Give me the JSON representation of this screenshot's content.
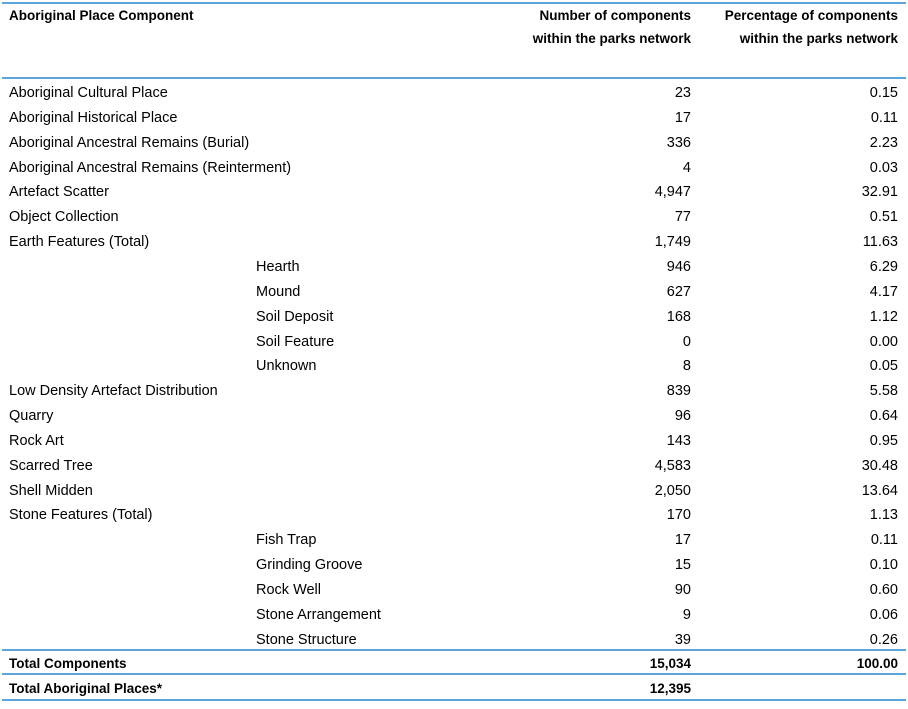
{
  "headers": {
    "component": "Aboriginal Place Component",
    "number_line1": "Number of components",
    "number_line2": "within the parks network",
    "percent_line1": "Percentage of components",
    "percent_line2": "within the parks network"
  },
  "rows": [
    {
      "name": "Aboriginal Cultural Place",
      "sub": "",
      "number": "23",
      "percent": "0.15"
    },
    {
      "name": "Aboriginal Historical Place",
      "sub": "",
      "number": "17",
      "percent": "0.11"
    },
    {
      "name": "Aboriginal Ancestral Remains (Burial)",
      "sub": "",
      "number": "336",
      "percent": "2.23"
    },
    {
      "name": "Aboriginal Ancestral Remains (Reinterment)",
      "sub": "",
      "number": "4",
      "percent": "0.03"
    },
    {
      "name": "Artefact Scatter",
      "sub": "",
      "number": "4,947",
      "percent": "32.91"
    },
    {
      "name": "Object Collection",
      "sub": "",
      "number": "77",
      "percent": "0.51"
    },
    {
      "name": "Earth Features (Total)",
      "sub": "",
      "number": "1,749",
      "percent": "11.63"
    },
    {
      "name": "",
      "sub": "Hearth",
      "number": "946",
      "percent": "6.29"
    },
    {
      "name": "",
      "sub": "Mound",
      "number": "627",
      "percent": "4.17"
    },
    {
      "name": "",
      "sub": "Soil Deposit",
      "number": "168",
      "percent": "1.12"
    },
    {
      "name": "",
      "sub": "Soil Feature",
      "number": "0",
      "percent": "0.00"
    },
    {
      "name": "",
      "sub": "Unknown",
      "number": "8",
      "percent": "0.05"
    },
    {
      "name": "Low Density Artefact Distribution",
      "sub": "",
      "number": "839",
      "percent": "5.58"
    },
    {
      "name": "Quarry",
      "sub": "",
      "number": "96",
      "percent": "0.64"
    },
    {
      "name": "Rock Art",
      "sub": "",
      "number": "143",
      "percent": "0.95"
    },
    {
      "name": "Scarred Tree",
      "sub": "",
      "number": "4,583",
      "percent": "30.48"
    },
    {
      "name": "Shell Midden",
      "sub": "",
      "number": "2,050",
      "percent": "13.64"
    },
    {
      "name": "Stone Features (Total)",
      "sub": "",
      "number": "170",
      "percent": "1.13"
    },
    {
      "name": "",
      "sub": "Fish Trap",
      "number": "17",
      "percent": "0.11"
    },
    {
      "name": "",
      "sub": "Grinding Groove",
      "number": "15",
      "percent": "0.10"
    },
    {
      "name": "",
      "sub": "Rock Well",
      "number": "90",
      "percent": "0.60"
    },
    {
      "name": "",
      "sub": "Stone Arrangement",
      "number": "9",
      "percent": "0.06"
    },
    {
      "name": "",
      "sub": "Stone Structure",
      "number": "39",
      "percent": "0.26"
    }
  ],
  "totals": {
    "components_label": "Total Components",
    "components_number": "15,034",
    "components_percent": "100.00",
    "places_label": "Total Aboriginal Places*",
    "places_number": "12,395"
  }
}
